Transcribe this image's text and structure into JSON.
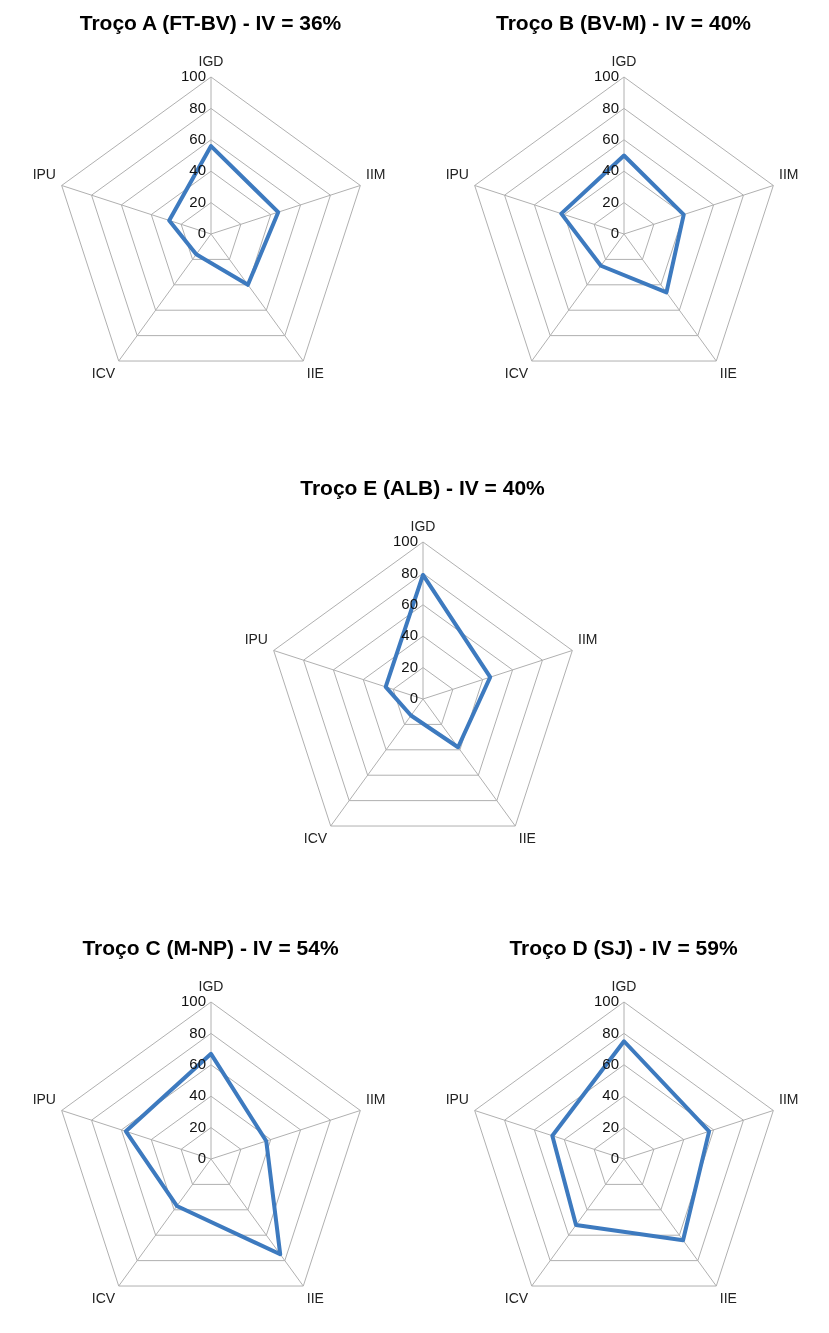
{
  "chart_data": [
    {
      "type": "radar",
      "title": "Troço A (FT-BV) - IV = 36%",
      "categories": [
        "IGD",
        "IIM",
        "IIE",
        "ICV",
        "IPU"
      ],
      "series": [
        {
          "color": "#3d7abf",
          "values": [
            56,
            45,
            40,
            16,
            28
          ]
        }
      ],
      "ylim": [
        0,
        100
      ],
      "yticks": [
        0,
        20,
        40,
        60,
        80,
        100
      ],
      "grid": true,
      "marker": "none"
    },
    {
      "type": "radar",
      "title": "Troço B (BV-M) - IV = 40%",
      "categories": [
        "IGD",
        "IIM",
        "IIE",
        "ICV",
        "IPU"
      ],
      "series": [
        {
          "color": "#3d7abf",
          "values": [
            50,
            40,
            46,
            25,
            42
          ]
        }
      ],
      "ylim": [
        0,
        100
      ],
      "yticks": [
        0,
        20,
        40,
        60,
        80,
        100
      ],
      "grid": true,
      "marker": "none"
    },
    {
      "type": "radar",
      "title": "Troço E (ALB) - IV = 40%",
      "categories": [
        "IGD",
        "IIM",
        "IIE",
        "ICV",
        "IPU"
      ],
      "series": [
        {
          "color": "#3d7abf",
          "values": [
            79,
            45,
            38,
            13,
            25
          ]
        }
      ],
      "ylim": [
        0,
        100
      ],
      "yticks": [
        0,
        20,
        40,
        60,
        80,
        100
      ],
      "grid": true,
      "marker": "none"
    },
    {
      "type": "radar",
      "title": "Troço C (M-NP) - IV = 54%",
      "categories": [
        "IGD",
        "IIM",
        "IIE",
        "ICV",
        "IPU"
      ],
      "series": [
        {
          "color": "#3d7abf",
          "values": [
            67,
            37,
            75,
            37,
            57
          ]
        }
      ],
      "ylim": [
        0,
        100
      ],
      "yticks": [
        0,
        20,
        40,
        60,
        80,
        100
      ],
      "grid": true,
      "marker": "none"
    },
    {
      "type": "radar",
      "title": "Troço D (SJ) - IV = 59%",
      "categories": [
        "IGD",
        "IIM",
        "IIE",
        "ICV",
        "IPU"
      ],
      "series": [
        {
          "color": "#3d7abf",
          "values": [
            75,
            57,
            64,
            52,
            48
          ]
        }
      ],
      "ylim": [
        0,
        100
      ],
      "yticks": [
        0,
        20,
        40,
        60,
        80,
        100
      ],
      "grid": true,
      "marker": "none"
    }
  ]
}
